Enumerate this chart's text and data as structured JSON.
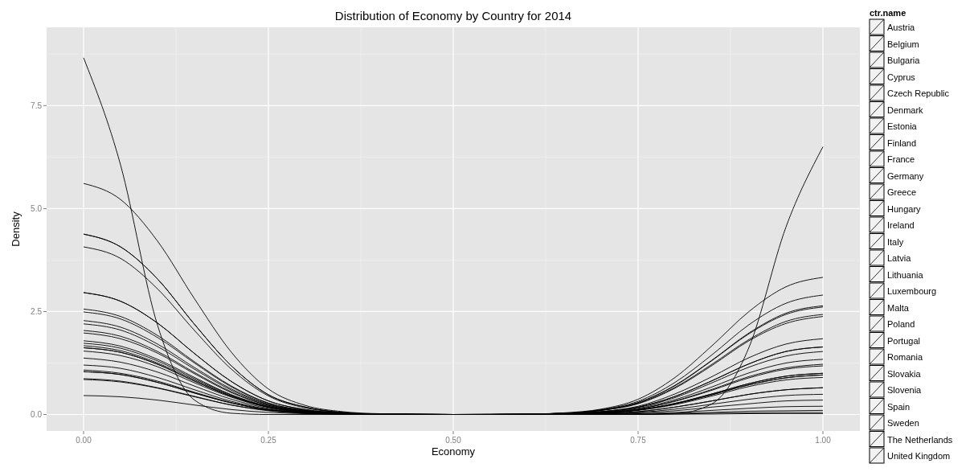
{
  "chart_data": {
    "type": "line",
    "title": "Distribution of Economy by Country for 2014",
    "xlabel": "Economy",
    "ylabel": "Density",
    "legend_title": "ctr.name",
    "legend": "right",
    "grid": true,
    "xlim": [
      -0.05,
      1.05
    ],
    "ylim": [
      -0.4,
      9.4
    ],
    "xticks": [
      {
        "value": 0,
        "label": "0.00"
      },
      {
        "value": 0.25,
        "label": "0.25"
      },
      {
        "value": 0.5,
        "label": "0.50"
      },
      {
        "value": 0.75,
        "label": "0.75"
      },
      {
        "value": 1,
        "label": "1.00"
      }
    ],
    "yticks": [
      {
        "value": 0,
        "label": "0.0"
      },
      {
        "value": 2.5,
        "label": "2.5"
      },
      {
        "value": 5,
        "label": "5.0"
      },
      {
        "value": 7.5,
        "label": "7.5"
      }
    ],
    "x": [
      0,
      0.05,
      0.1,
      0.15,
      0.2,
      0.25,
      0.3,
      0.35,
      0.4,
      0.5,
      0.6,
      0.65,
      0.7,
      0.75,
      0.8,
      0.85,
      0.9,
      0.95,
      1
    ],
    "series": [
      {
        "name": "Austria",
        "color": "#000000",
        "values": [
          2.28,
          2.12,
          1.71,
          1.14,
          0.62,
          0.25,
          0.09,
          0.03,
          0.01,
          0,
          0,
          0.01,
          0.04,
          0.1,
          0.24,
          0.45,
          0.68,
          0.84,
          0.9
        ]
      },
      {
        "name": "Belgium",
        "color": "#000000",
        "values": [
          1.67,
          1.55,
          1.25,
          0.84,
          0.45,
          0.18,
          0.07,
          0.02,
          0.01,
          0,
          0,
          0.02,
          0.05,
          0.15,
          0.36,
          0.67,
          1.01,
          1.25,
          1.34
        ]
      },
      {
        "name": "Bulgaria",
        "color": "#000000",
        "values": [
          0.87,
          0.81,
          0.65,
          0.44,
          0.23,
          0.1,
          0.03,
          0.01,
          0,
          0,
          0.01,
          0.03,
          0.11,
          0.29,
          0.71,
          1.32,
          1.98,
          2.46,
          2.64
        ]
      },
      {
        "name": "Cyprus",
        "color": "#000000",
        "values": [
          4.38,
          4.07,
          3.29,
          2.19,
          1.18,
          0.48,
          0.18,
          0.05,
          0.01,
          0,
          0,
          0,
          0,
          0.01,
          0.01,
          0.03,
          0.04,
          0.05,
          0.05
        ]
      },
      {
        "name": "Czech Republic",
        "color": "#000000",
        "values": [
          1.79,
          1.66,
          1.34,
          0.9,
          0.48,
          0.2,
          0.07,
          0.02,
          0.01,
          0,
          0,
          0.01,
          0.05,
          0.13,
          0.33,
          0.61,
          0.92,
          1.13,
          1.22
        ]
      },
      {
        "name": "Denmark",
        "color": "#000000",
        "values": [
          1.04,
          0.97,
          0.78,
          0.52,
          0.28,
          0.11,
          0.04,
          0.01,
          0,
          0,
          0.01,
          0.03,
          0.1,
          0.27,
          0.66,
          1.22,
          1.82,
          2.26,
          2.43
        ]
      },
      {
        "name": "Estonia",
        "color": "#000000",
        "values": [
          2.96,
          2.75,
          2.22,
          1.48,
          0.8,
          0.33,
          0.12,
          0.04,
          0.01,
          0,
          0,
          0,
          0.01,
          0.04,
          0.09,
          0.18,
          0.26,
          0.33,
          0.35
        ]
      },
      {
        "name": "Finland",
        "color": "#000000",
        "values": [
          1.54,
          1.43,
          1.16,
          0.77,
          0.42,
          0.17,
          0.06,
          0.02,
          0,
          0,
          0,
          0.02,
          0.07,
          0.18,
          0.44,
          0.82,
          1.23,
          1.53,
          1.64
        ]
      },
      {
        "name": "France",
        "color": "#000000",
        "values": [
          1.62,
          1.51,
          1.22,
          0.81,
          0.44,
          0.18,
          0.06,
          0.02,
          0,
          0,
          0,
          0.02,
          0.06,
          0.17,
          0.41,
          0.77,
          1.15,
          1.42,
          1.53
        ]
      },
      {
        "name": "Germany",
        "color": "#000000",
        "values": [
          1.2,
          1.12,
          0.9,
          0.6,
          0.32,
          0.13,
          0.05,
          0.01,
          0,
          0,
          0.01,
          0.02,
          0.07,
          0.2,
          0.5,
          0.92,
          1.38,
          1.71,
          1.84
        ]
      },
      {
        "name": "Greece",
        "color": "#000000",
        "values": [
          5.61,
          5.22,
          4.21,
          2.81,
          1.51,
          0.62,
          0.22,
          0.07,
          0.02,
          0,
          0,
          0,
          0,
          0,
          0.01,
          0.01,
          0.02,
          0.02,
          0.02
        ]
      },
      {
        "name": "Hungary",
        "color": "#000000",
        "values": [
          1.73,
          1.61,
          1.3,
          0.87,
          0.47,
          0.19,
          0.07,
          0.02,
          0.01,
          0,
          0,
          0.01,
          0.04,
          0.11,
          0.27,
          0.5,
          0.75,
          0.93,
          1
        ]
      },
      {
        "name": "Ireland",
        "color": "#000000",
        "values": [
          2.56,
          2.38,
          1.92,
          1.28,
          0.69,
          0.28,
          0.1,
          0.03,
          0.01,
          0,
          0,
          0.01,
          0.03,
          0.07,
          0.18,
          0.33,
          0.49,
          0.6,
          0.65
        ]
      },
      {
        "name": "Italy",
        "color": "#000000",
        "values": [
          4.07,
          3.79,
          3.05,
          2.04,
          1.1,
          0.45,
          0.16,
          0.05,
          0.01,
          0,
          0,
          0,
          0.01,
          0.02,
          0.05,
          0.1,
          0.15,
          0.19,
          0.2
        ]
      },
      {
        "name": "Latvia",
        "color": "#000000",
        "values": [
          2.49,
          2.32,
          1.87,
          1.25,
          0.67,
          0.27,
          0.1,
          0.03,
          0.01,
          0,
          0,
          0.01,
          0.03,
          0.07,
          0.18,
          0.33,
          0.49,
          0.6,
          0.65
        ]
      },
      {
        "name": "Lithuania",
        "color": "#000000",
        "values": [
          2.2,
          2.05,
          1.65,
          1.1,
          0.59,
          0.24,
          0.09,
          0.03,
          0.01,
          0,
          0,
          0.01,
          0.04,
          0.11,
          0.26,
          0.48,
          0.72,
          0.89,
          0.96
        ]
      },
      {
        "name": "Luxembourg",
        "color": "#000000",
        "values": [
          8.66,
          6.06,
          2.17,
          0.35,
          0.03,
          0,
          0,
          0,
          0,
          0,
          0,
          0,
          0,
          0,
          0.02,
          0.26,
          1.63,
          4.55,
          6.5
        ]
      },
      {
        "name": "Malta",
        "color": "#000000",
        "values": [
          4.38,
          4.07,
          3.29,
          2.19,
          1.18,
          0.48,
          0.18,
          0.05,
          0.01,
          0,
          0,
          0,
          0,
          0.01,
          0.03,
          0.05,
          0.08,
          0.09,
          0.1
        ]
      },
      {
        "name": "Poland",
        "color": "#000000",
        "values": [
          1.37,
          1.27,
          1.03,
          0.69,
          0.37,
          0.15,
          0.05,
          0.02,
          0,
          0,
          0,
          0.02,
          0.07,
          0.18,
          0.44,
          0.82,
          1.23,
          1.53,
          1.64
        ]
      },
      {
        "name": "Portugal",
        "color": "#000000",
        "values": [
          2.96,
          2.75,
          2.22,
          1.48,
          0.8,
          0.33,
          0.12,
          0.04,
          0.01,
          0,
          0,
          0.01,
          0.02,
          0.05,
          0.13,
          0.25,
          0.37,
          0.46,
          0.49
        ]
      },
      {
        "name": "Romania",
        "color": "#000000",
        "values": [
          2.04,
          1.9,
          1.53,
          1.02,
          0.55,
          0.22,
          0.08,
          0.02,
          0.01,
          0,
          0,
          0.01,
          0.04,
          0.11,
          0.26,
          0.48,
          0.72,
          0.89,
          0.96
        ]
      },
      {
        "name": "Slovakia",
        "color": "#000000",
        "values": [
          1.98,
          1.84,
          1.49,
          0.99,
          0.53,
          0.22,
          0.08,
          0.02,
          0.01,
          0,
          0,
          0.01,
          0.04,
          0.11,
          0.27,
          0.5,
          0.75,
          0.93,
          1
        ]
      },
      {
        "name": "Slovenia",
        "color": "#000000",
        "values": [
          1.62,
          1.51,
          1.22,
          0.81,
          0.44,
          0.18,
          0.06,
          0.02,
          0,
          0,
          0,
          0.01,
          0.05,
          0.13,
          0.32,
          0.59,
          0.89,
          1.1,
          1.18
        ]
      },
      {
        "name": "Spain",
        "color": "#000000",
        "values": [
          1.08,
          1,
          0.81,
          0.54,
          0.29,
          0.12,
          0.04,
          0.01,
          0,
          0,
          0.01,
          0.03,
          0.1,
          0.26,
          0.64,
          1.19,
          1.79,
          2.21,
          2.38
        ]
      },
      {
        "name": "Sweden",
        "color": "#000000",
        "values": [
          1.04,
          0.97,
          0.78,
          0.52,
          0.28,
          0.11,
          0.04,
          0.01,
          0,
          0,
          0.01,
          0.03,
          0.1,
          0.29,
          0.7,
          1.31,
          1.96,
          2.43,
          2.61
        ]
      },
      {
        "name": "The Netherlands",
        "color": "#000000",
        "values": [
          0.85,
          0.79,
          0.64,
          0.43,
          0.23,
          0.09,
          0.03,
          0.01,
          0,
          0,
          0.01,
          0.03,
          0.12,
          0.32,
          0.78,
          1.45,
          2.18,
          2.7,
          2.9
        ]
      },
      {
        "name": "United Kingdom",
        "color": "#000000",
        "values": [
          0.46,
          0.43,
          0.35,
          0.23,
          0.12,
          0.05,
          0.02,
          0.01,
          0,
          0,
          0.01,
          0.04,
          0.13,
          0.37,
          0.9,
          1.67,
          2.5,
          3.1,
          3.33
        ]
      }
    ]
  }
}
